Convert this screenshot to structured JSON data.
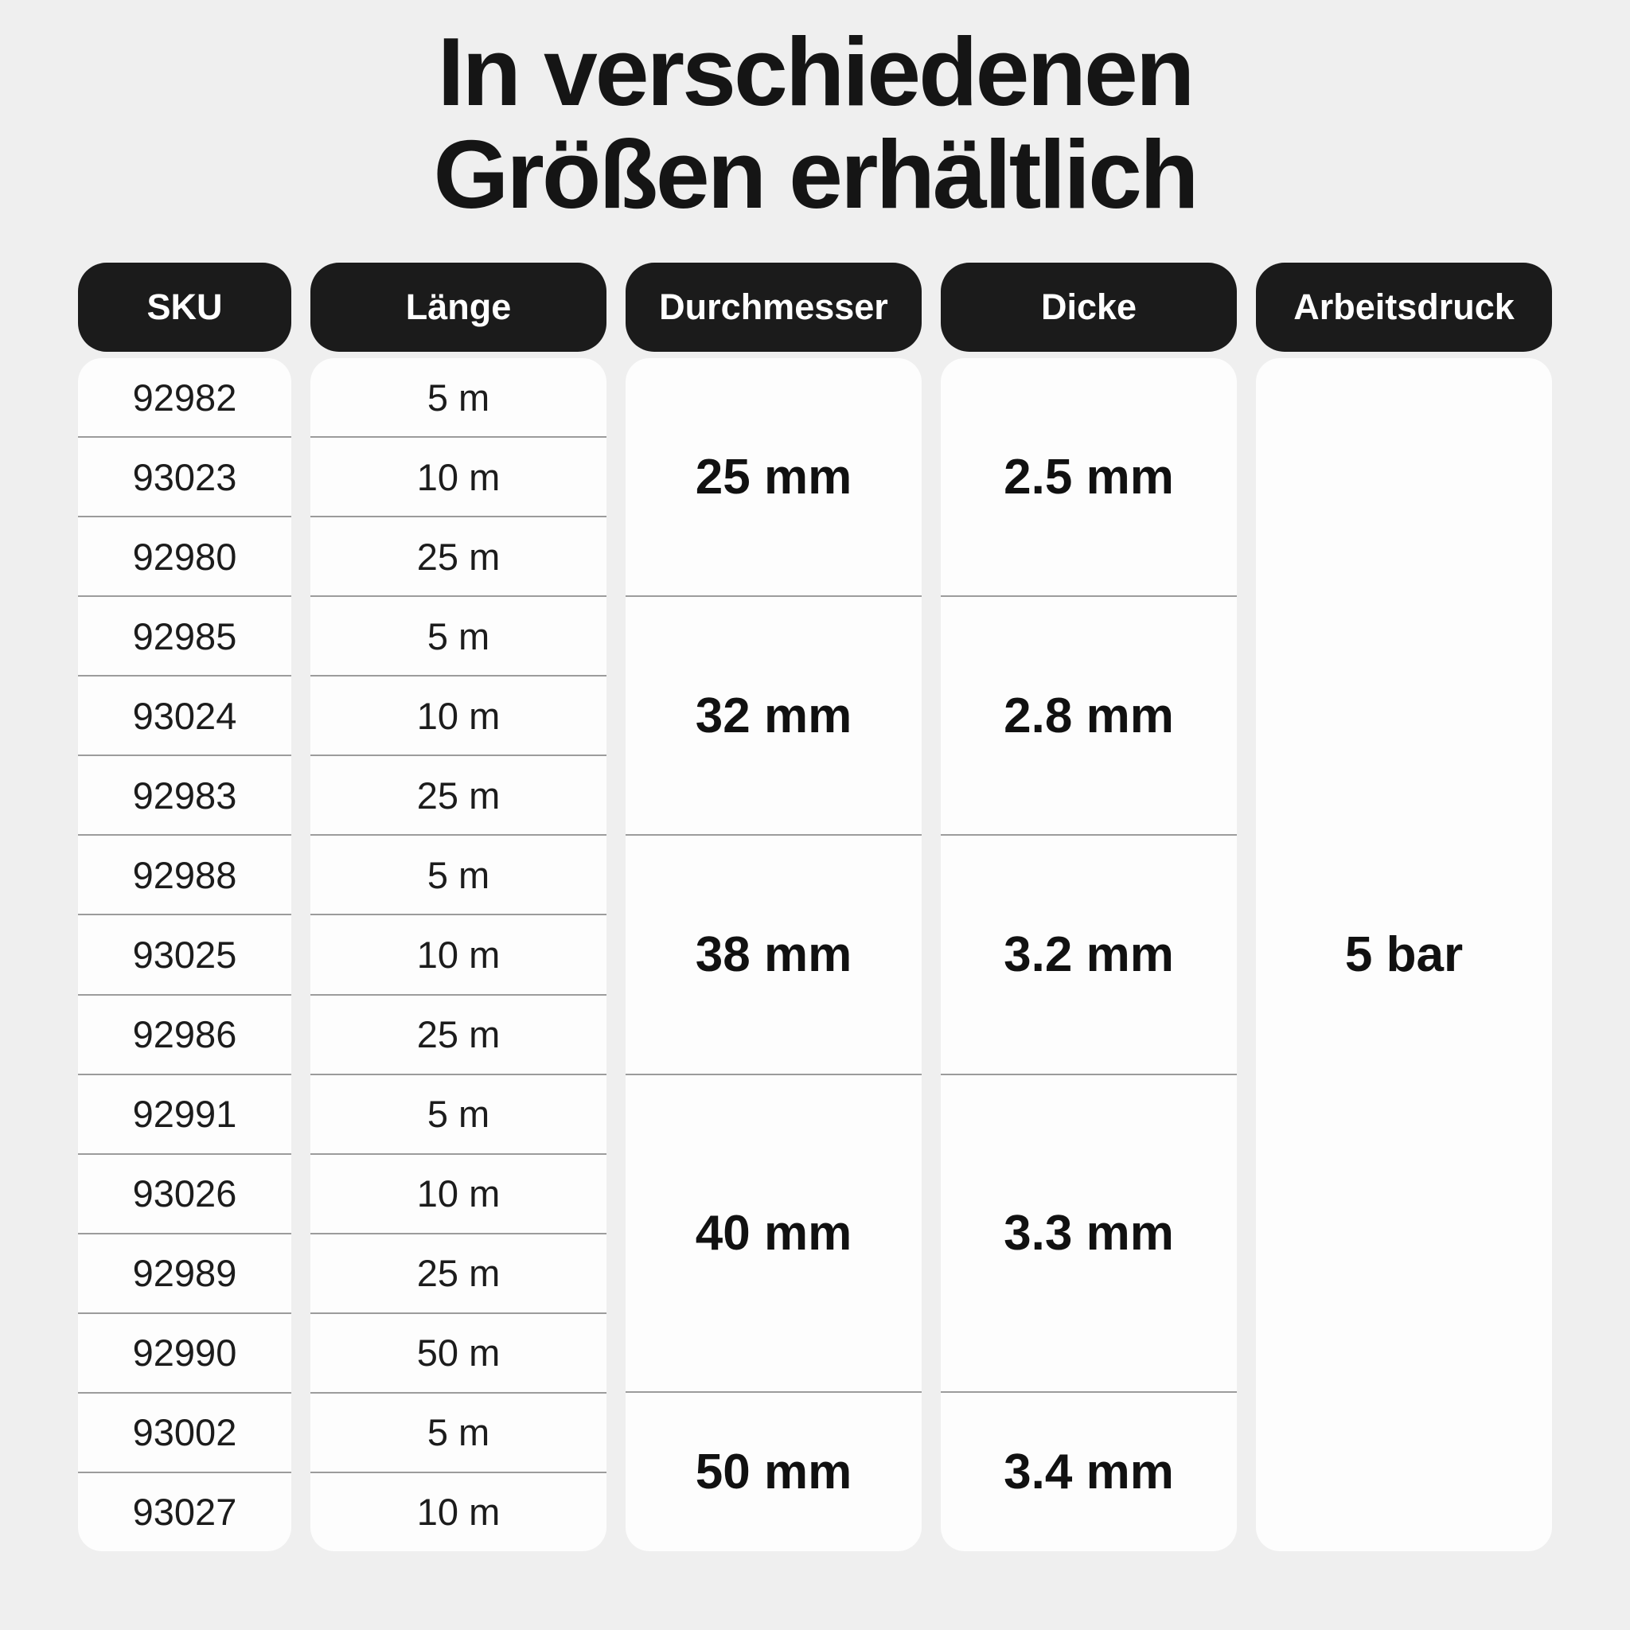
{
  "title": {
    "line1": "In verschiedenen",
    "line2": "Größen erhältlich"
  },
  "table": {
    "headers": [
      "SKU",
      "Länge",
      "Durchmesser",
      "Dicke",
      "Arbeitsdruck"
    ],
    "rows": [
      {
        "sku": "92982",
        "length": "5 m"
      },
      {
        "sku": "93023",
        "length": "10 m"
      },
      {
        "sku": "92980",
        "length": "25 m"
      },
      {
        "sku": "92985",
        "length": "5 m"
      },
      {
        "sku": "93024",
        "length": "10 m"
      },
      {
        "sku": "92983",
        "length": "25 m"
      },
      {
        "sku": "92988",
        "length": "5 m"
      },
      {
        "sku": "93025",
        "length": "10 m"
      },
      {
        "sku": "92986",
        "length": "25 m"
      },
      {
        "sku": "92991",
        "length": "5 m"
      },
      {
        "sku": "93026",
        "length": "10 m"
      },
      {
        "sku": "92989",
        "length": "25 m"
      },
      {
        "sku": "92990",
        "length": "50 m"
      },
      {
        "sku": "93002",
        "length": "5 m"
      },
      {
        "sku": "93027",
        "length": "10 m"
      }
    ],
    "groups": [
      {
        "diameter": "25 mm",
        "thickness": "2.5 mm",
        "row_span": 3
      },
      {
        "diameter": "32 mm",
        "thickness": "2.8 mm",
        "row_span": 3
      },
      {
        "diameter": "38 mm",
        "thickness": "3.2 mm",
        "row_span": 3
      },
      {
        "diameter": "40 mm",
        "thickness": "3.3 mm",
        "row_span": 4
      },
      {
        "diameter": "50 mm",
        "thickness": "3.4 mm",
        "row_span": 2
      }
    ],
    "pressure": "5 bar"
  },
  "colors": {
    "background": "#efefef",
    "header_pill": "#1b1b1b",
    "card": "#fdfdfd",
    "divider": "#9c9c9c",
    "text": "#151515"
  }
}
